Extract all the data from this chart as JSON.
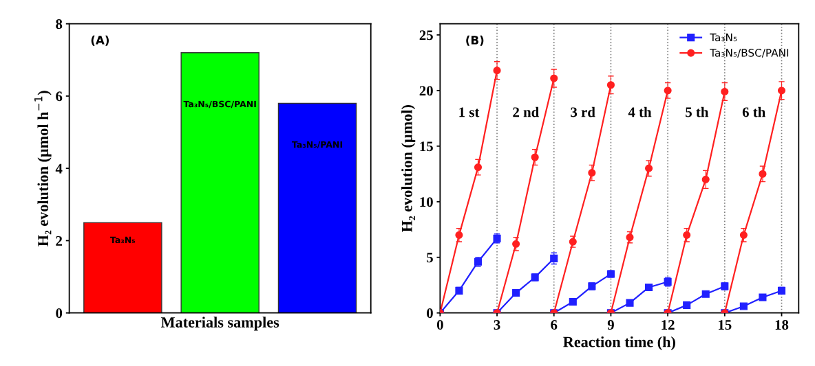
{
  "chart_data": [
    {
      "type": "bar",
      "xlabel": "Materials samples",
      "ylabel": "H₂ evolution (µmol h$^{−1}$)",
      "annotations": [
        "(A)"
      ],
      "categories": [
        "Ta₃N₅",
        "Ta₃N₅/BSC/PANI",
        "Ta₃N₅/PANI"
      ],
      "values": [
        2.5,
        7.2,
        5.8
      ],
      "colors": [
        "#ff0000",
        "#00ff00",
        "#0000ff"
      ],
      "ylim": [
        0,
        8
      ],
      "yticks": [
        0,
        2,
        4,
        6,
        8
      ],
      "tick_labels": "y",
      "grid": false
    },
    {
      "type": "line",
      "xlabel": "Reaction time (h)",
      "ylabel": "H₂ evolution (µmol)",
      "annotations": [
        "(B)",
        "1 st",
        "2 nd",
        "3 rd",
        "4 th",
        "5 th",
        "6 th"
      ],
      "series": [
        {
          "name": "Ta₃N₅",
          "color": "#2020ff",
          "marker": "square",
          "x": [
            0,
            1,
            2,
            3
          ],
          "values": [
            0,
            2.0,
            4.6,
            6.7
          ],
          "errors": [
            null,
            0.3,
            0.4,
            0.4
          ]
        },
        {
          "color": "#2020ff",
          "marker": "square",
          "x": [
            3,
            4,
            5,
            6
          ],
          "values": [
            0,
            1.8,
            3.2,
            4.9
          ],
          "errors": [
            null,
            0.3,
            0.3,
            0.5
          ]
        },
        {
          "color": "#2020ff",
          "marker": "square",
          "x": [
            6,
            7,
            8,
            9
          ],
          "values": [
            0,
            1.0,
            2.4,
            3.5
          ],
          "errors": [
            null,
            0.2,
            0.3,
            0.3
          ]
        },
        {
          "color": "#2020ff",
          "marker": "square",
          "x": [
            9,
            10,
            11,
            12
          ],
          "values": [
            0,
            0.9,
            2.3,
            2.8
          ],
          "errors": [
            null,
            0.2,
            0.2,
            0.4
          ]
        },
        {
          "color": "#2020ff",
          "marker": "square",
          "x": [
            12,
            13,
            14,
            15
          ],
          "values": [
            0,
            0.7,
            1.7,
            2.4
          ],
          "errors": [
            null,
            0.2,
            0.2,
            0.3
          ]
        },
        {
          "color": "#2020ff",
          "marker": "square",
          "x": [
            15,
            16,
            17,
            18
          ],
          "values": [
            0,
            0.6,
            1.4,
            2.0
          ],
          "errors": [
            null,
            0.2,
            0.2,
            0.3
          ]
        },
        {
          "name": "Ta₃N₅/BSC/PANI",
          "color": "#ff2020",
          "marker": "circle",
          "x": [
            0,
            1,
            2,
            3
          ],
          "values": [
            0,
            7.0,
            13.1,
            21.8
          ],
          "errors": [
            null,
            0.6,
            0.7,
            0.8
          ]
        },
        {
          "color": "#ff2020",
          "marker": "circle",
          "x": [
            3,
            4,
            5,
            6
          ],
          "values": [
            0,
            6.2,
            14.0,
            21.1
          ],
          "errors": [
            null,
            0.6,
            0.7,
            0.8
          ]
        },
        {
          "color": "#ff2020",
          "marker": "circle",
          "x": [
            6,
            7,
            8,
            9
          ],
          "values": [
            0,
            6.4,
            12.6,
            20.5
          ],
          "errors": [
            null,
            0.5,
            0.7,
            0.8
          ]
        },
        {
          "color": "#ff2020",
          "marker": "circle",
          "x": [
            9,
            10,
            11,
            12
          ],
          "values": [
            0,
            6.8,
            13.0,
            20.0
          ],
          "errors": [
            null,
            0.5,
            0.7,
            0.7
          ]
        },
        {
          "color": "#ff2020",
          "marker": "circle",
          "x": [
            12,
            13,
            14,
            15
          ],
          "values": [
            0,
            7.0,
            12.0,
            19.9
          ],
          "errors": [
            null,
            0.6,
            0.8,
            0.8
          ]
        },
        {
          "color": "#ff2020",
          "marker": "circle",
          "x": [
            15,
            16,
            17,
            18
          ],
          "values": [
            0,
            7.0,
            12.5,
            20.0
          ],
          "errors": [
            null,
            0.6,
            0.7,
            0.8
          ]
        }
      ],
      "xlim": [
        0,
        18.9
      ],
      "xticks": [
        0,
        3,
        6,
        9,
        12,
        15,
        18
      ],
      "ylim": [
        0,
        26
      ],
      "yticks": [
        0,
        5,
        10,
        15,
        20,
        25
      ],
      "ref_lines": [
        {
          "axis": "x",
          "value": 3,
          "line_style": "dotted",
          "color": "#808080"
        },
        {
          "axis": "x",
          "value": 6,
          "line_style": "dotted",
          "color": "#808080"
        },
        {
          "axis": "x",
          "value": 9,
          "line_style": "dotted",
          "color": "#808080"
        },
        {
          "axis": "x",
          "value": 12,
          "line_style": "dotted",
          "color": "#808080"
        },
        {
          "axis": "x",
          "value": 15,
          "line_style": "dotted",
          "color": "#808080"
        },
        {
          "axis": "x",
          "value": 18,
          "line_style": "dotted",
          "color": "#808080"
        }
      ],
      "legend": "top right",
      "grid": false,
      "line_style": "solid"
    }
  ]
}
